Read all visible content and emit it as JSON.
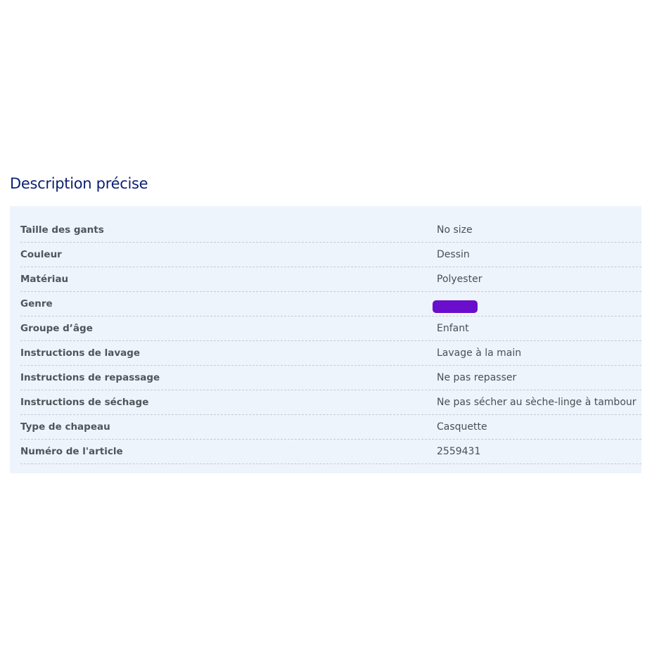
{
  "section": {
    "title": "Description précise",
    "rows": [
      {
        "label": "Taille des gants",
        "value": "No size"
      },
      {
        "label": "Couleur",
        "value": "Dessin"
      },
      {
        "label": "Matériau",
        "value": "Polyester"
      },
      {
        "label": "Genre",
        "value": null,
        "redacted": true
      },
      {
        "label": "Groupe d’âge",
        "value": "Enfant"
      },
      {
        "label": "Instructions de lavage",
        "value": "Lavage à la main"
      },
      {
        "label": "Instructions de repassage",
        "value": "Ne pas repasser"
      },
      {
        "label": "Instructions de séchage",
        "value": "Ne pas sécher au sèche-linge à tambour"
      },
      {
        "label": "Type de chapeau",
        "value": "Casquette"
      },
      {
        "label": "Numéro de l'article",
        "value": "2559431"
      }
    ]
  },
  "colors": {
    "title": "#0b1f73",
    "panel_bg": "#edf4fb",
    "redaction": "#6a0dcc"
  }
}
